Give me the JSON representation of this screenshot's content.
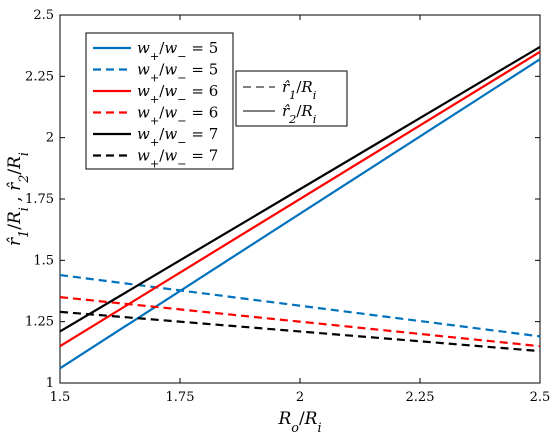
{
  "chart_data": {
    "type": "line",
    "title": "",
    "xlabel": "R_o/R_i",
    "ylabel": "r̂_1/R_i , r̂_2/R_i",
    "xlim": [
      1.5,
      2.5
    ],
    "ylim": [
      1,
      2.5
    ],
    "xticks": [
      "1.5",
      "1.75",
      "2",
      "2.25",
      "2.5"
    ],
    "yticks": [
      "1",
      "1.25",
      "1.5",
      "1.75",
      "2",
      "2.25",
      "2.5"
    ],
    "grid": false,
    "series": [
      {
        "name": "w+/w− = 5",
        "color": "#0072BD",
        "style": "solid",
        "x": [
          1.5,
          2.5
        ],
        "y": [
          1.06,
          2.32
        ]
      },
      {
        "name": "w+/w− = 5",
        "color": "#0072BD",
        "style": "dashed",
        "x": [
          1.5,
          2.5
        ],
        "y": [
          1.44,
          1.19
        ]
      },
      {
        "name": "w+/w− = 6",
        "color": "#FF0000",
        "style": "solid",
        "x": [
          1.5,
          2.5
        ],
        "y": [
          1.15,
          2.35
        ]
      },
      {
        "name": "w+/w− = 6",
        "color": "#FF0000",
        "style": "dashed",
        "x": [
          1.5,
          2.5
        ],
        "y": [
          1.35,
          1.15
        ]
      },
      {
        "name": "w+/w− = 7",
        "color": "#000000",
        "style": "solid",
        "x": [
          1.5,
          2.5
        ],
        "y": [
          1.21,
          2.37
        ]
      },
      {
        "name": "w+/w− = 7",
        "color": "#000000",
        "style": "dashed",
        "x": [
          1.5,
          2.5
        ],
        "y": [
          1.29,
          1.13
        ]
      }
    ],
    "legends": {
      "primary": {
        "placement": "top-left",
        "entries": [
          {
            "label": "w+/w− = 5",
            "color": "#0072BD",
            "style": "solid"
          },
          {
            "label": "w+/w− = 5",
            "color": "#0072BD",
            "style": "dashed"
          },
          {
            "label": "w+/w− = 6",
            "color": "#FF0000",
            "style": "solid"
          },
          {
            "label": "w+/w− = 6",
            "color": "#FF0000",
            "style": "dashed"
          },
          {
            "label": "w+/w− = 7",
            "color": "#000000",
            "style": "solid"
          },
          {
            "label": "w+/w− = 7",
            "color": "#000000",
            "style": "dashed"
          }
        ]
      },
      "secondary": {
        "placement": "top-center",
        "entries": [
          {
            "label": "r̂_1/R_i",
            "color": "#000000",
            "style": "dashed"
          },
          {
            "label": "r̂_2/R_i",
            "color": "#000000",
            "style": "solid"
          }
        ]
      }
    }
  }
}
